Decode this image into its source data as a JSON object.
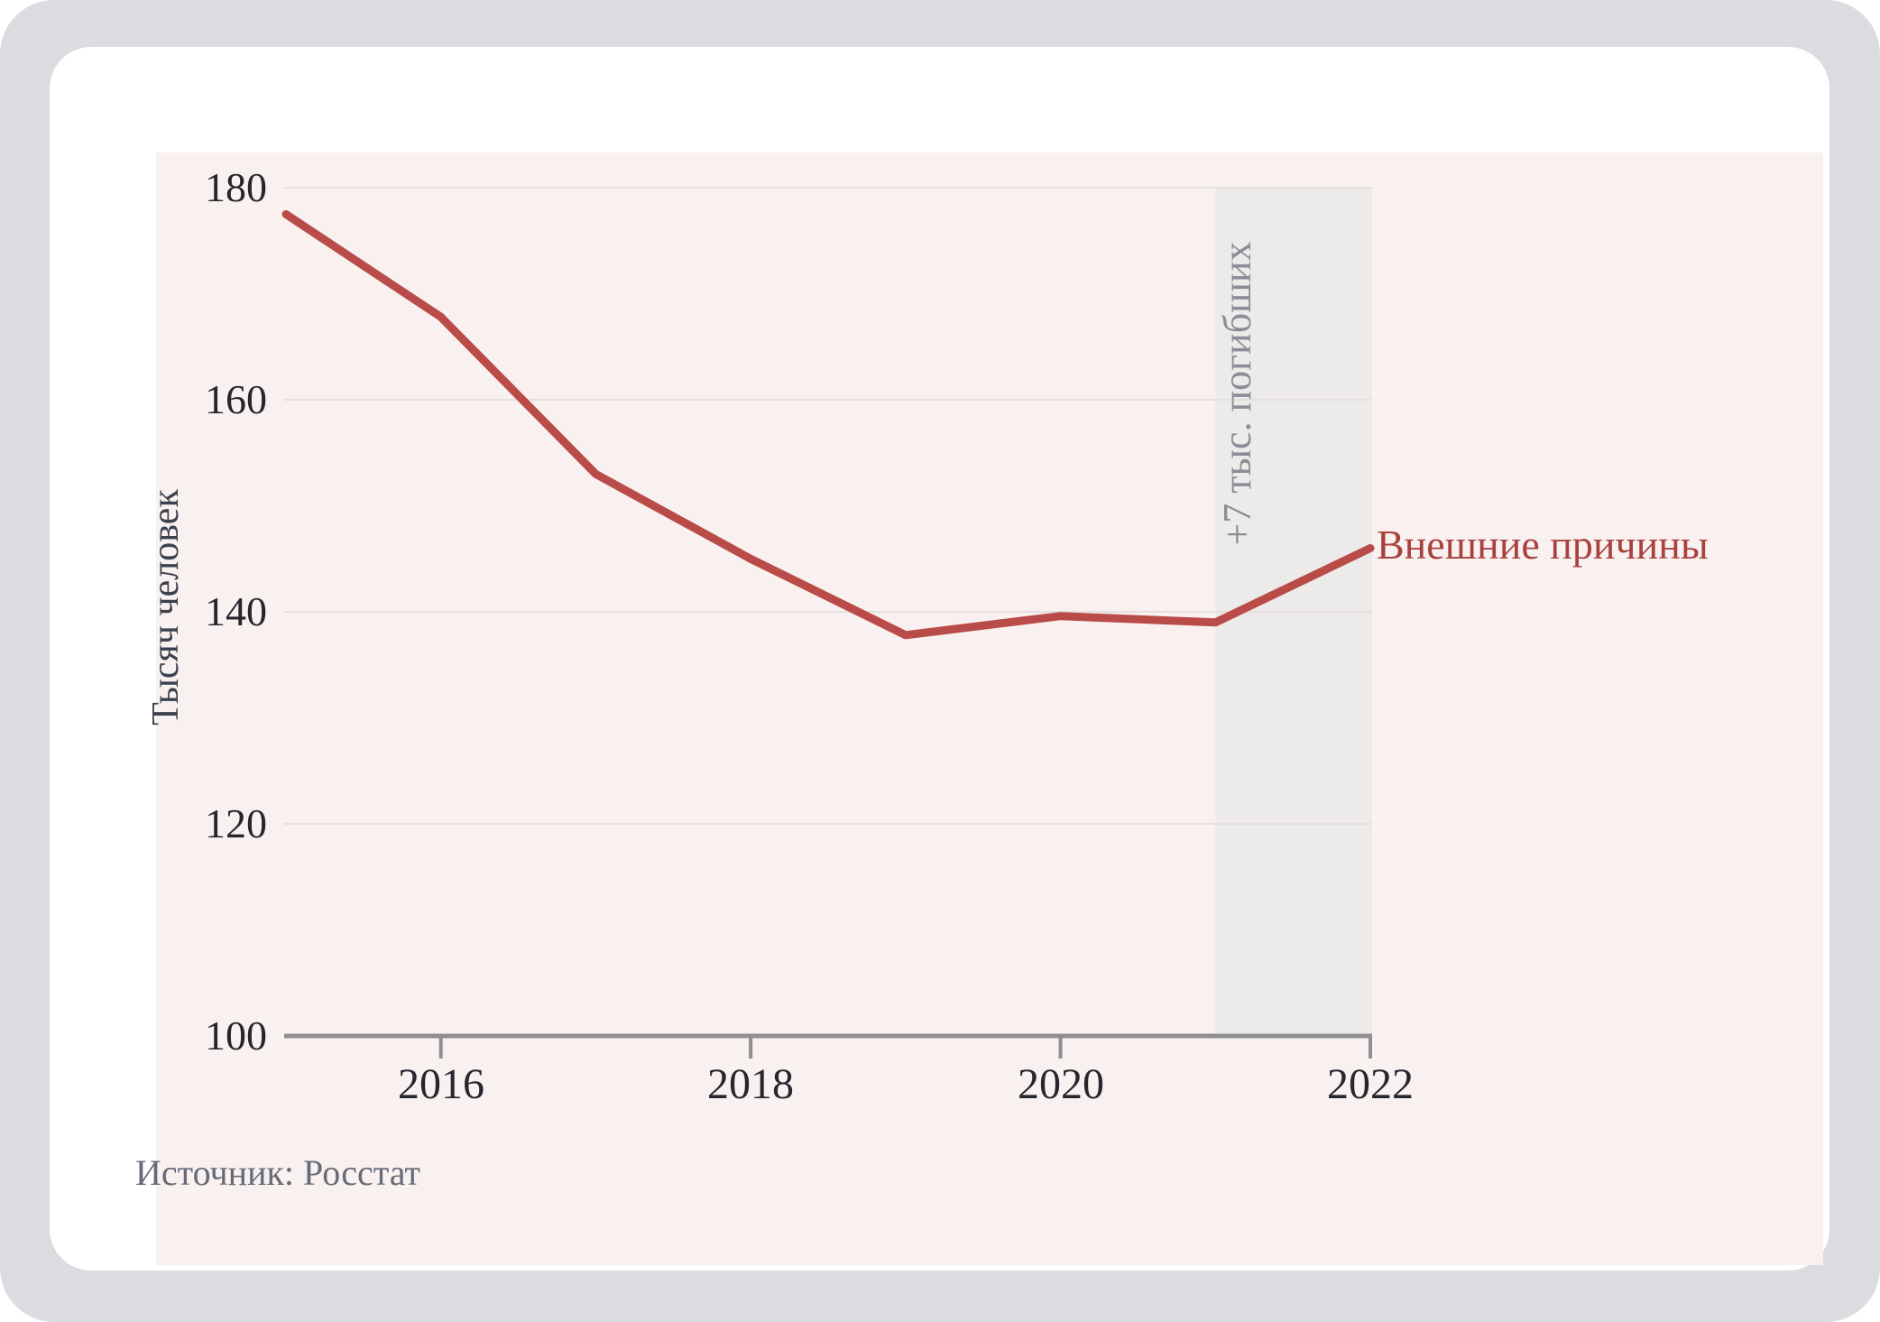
{
  "chart_data": {
    "type": "line",
    "title": "",
    "ylabel": "Тысяч человек",
    "xlabel": "",
    "x": [
      2015,
      2016,
      2017,
      2018,
      2019,
      2020,
      2021,
      2022
    ],
    "series": [
      {
        "name": "Внешние причины",
        "values": [
          177.5,
          167.8,
          153.0,
          145.0,
          137.8,
          139.6,
          139.0,
          146.0
        ],
        "color": "#b94b48",
        "label_color": "#a8423f"
      }
    ],
    "ylim": [
      100,
      180
    ],
    "y_ticks": [
      180,
      160,
      140,
      120,
      100
    ],
    "x_ticks": [
      2016,
      2018,
      2020,
      2022
    ],
    "grid": "horizontal",
    "legend": "line-end-label",
    "annotation_band": {
      "x_from": 2021,
      "x_to": 2022,
      "label": "+7 тыс. погибших",
      "fill": "#edebea"
    },
    "source": "Источник: Росстат",
    "colors": {
      "plot_background": "#f9f1f0",
      "card_background": "#ffffff",
      "page_background": "#dbdce0",
      "gridline": "#e5e0df",
      "axis": "#8f8f93"
    }
  }
}
